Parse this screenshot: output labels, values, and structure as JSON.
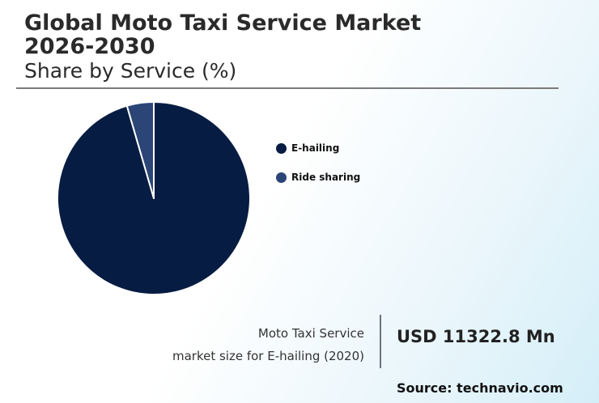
{
  "header": {
    "title": "Global Moto Taxi Service Market 2026-2030",
    "subtitle": "Share by Service (%)"
  },
  "chart_data": {
    "type": "pie",
    "title": "Share by Service (%)",
    "categories": [
      "E-hailing",
      "Ride sharing"
    ],
    "values": [
      95.5,
      4.5
    ],
    "colors": [
      "#071c42",
      "#2b4577"
    ],
    "legend_position": "right"
  },
  "summary": {
    "caption_line1": "Moto Taxi Service",
    "caption_line2": "market size for E-hailing (2020)",
    "value": "USD 11322.8 Mn"
  },
  "footer": {
    "source": "Source: technavio.com"
  }
}
